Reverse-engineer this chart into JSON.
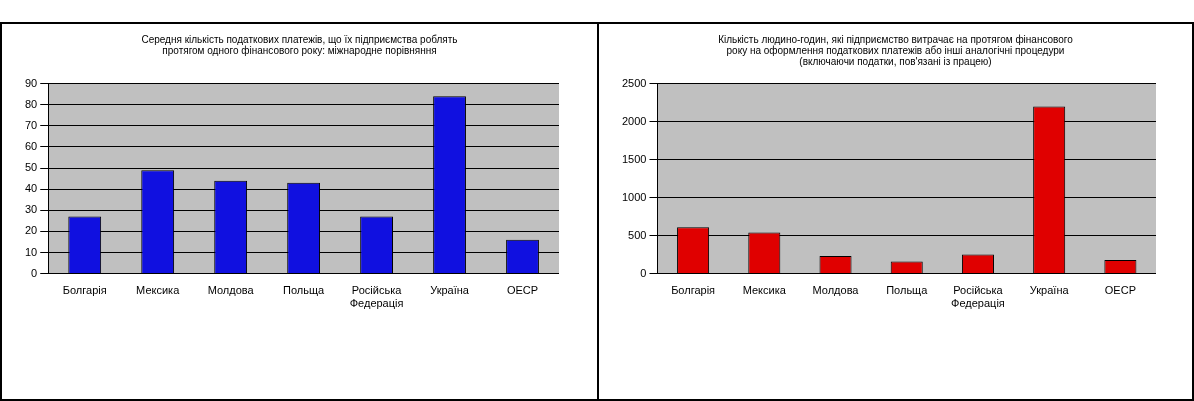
{
  "chart_data": [
    {
      "type": "bar",
      "title": "Середня кількість податкових платежів, що їх підприємства роблять\nпротягом одного фінансового року:  міжнародне порівняння",
      "categories": [
        "Болгарія",
        "Мексика",
        "Молдова",
        "Польща",
        "Російська Федерація",
        "Україна",
        "ОЕСР"
      ],
      "values": [
        27,
        49,
        44,
        43,
        27,
        84,
        16
      ],
      "color": "#1010e0",
      "ylim": [
        0,
        90
      ],
      "yticks": [
        0,
        10,
        20,
        30,
        40,
        50,
        60,
        70,
        80,
        90
      ],
      "grid": "y"
    },
    {
      "type": "bar",
      "title": "Кількість людино-годин, які підприємство витрачає на протягом фінансового\nроку на оформлення податкових платежів або інші аналогічні процедури\n(включаючи податки, пов'язані із працею)",
      "categories": [
        "Болгарія",
        "Мексика",
        "Молдова",
        "Польща",
        "Російська Федерація",
        "Україна",
        "ОЕСР"
      ],
      "values": [
        610,
        540,
        230,
        160,
        250,
        2200,
        180
      ],
      "color": "#e00000",
      "ylim": [
        0,
        2500
      ],
      "yticks": [
        0,
        500,
        1000,
        1500,
        2000,
        2500
      ],
      "grid": "y"
    }
  ]
}
